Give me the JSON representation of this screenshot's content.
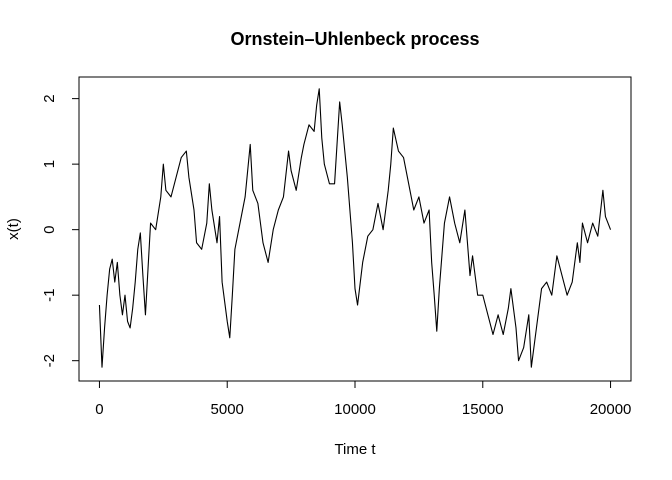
{
  "chart_data": {
    "type": "line",
    "title": "Ornstein–Uhlenbeck process",
    "x_label": "Time t",
    "y_label": "x(t)",
    "series": [
      {
        "color": "#000000",
        "x": [
          0,
          100,
          200,
          300,
          400,
          500,
          600,
          700,
          800,
          900,
          1000,
          1100,
          1200,
          1300,
          1400,
          1500,
          1600,
          1700,
          1800,
          1900,
          2000,
          2200,
          2400,
          2500,
          2600,
          2800,
          3000,
          3200,
          3400,
          3500,
          3700,
          3800,
          4000,
          4200,
          4300,
          4400,
          4600,
          4700,
          4800,
          5000,
          5100,
          5200,
          5300,
          5500,
          5700,
          5800,
          5900,
          6000,
          6200,
          6400,
          6600,
          6800,
          7000,
          7200,
          7400,
          7500,
          7700,
          7900,
          8000,
          8200,
          8400,
          8500,
          8600,
          8700,
          8800,
          9000,
          9200,
          9400,
          9500,
          9700,
          9900,
          10000,
          10100,
          10300,
          10500,
          10700,
          10900,
          11100,
          11300,
          11400,
          11500,
          11700,
          11900,
          12100,
          12300,
          12500,
          12700,
          12900,
          13000,
          13100,
          13200,
          13300,
          13500,
          13700,
          13900,
          14100,
          14300,
          14500,
          14600,
          14800,
          15000,
          15200,
          15400,
          15600,
          15800,
          16000,
          16100,
          16300,
          16400,
          16600,
          16800,
          16900,
          17100,
          17300,
          17500,
          17700,
          17900,
          18100,
          18300,
          18500,
          18700,
          18800,
          18900,
          19100,
          19300,
          19500,
          19700,
          19800,
          20000
        ],
        "values": [
          -1.15,
          -2.1,
          -1.5,
          -1.0,
          -0.6,
          -0.45,
          -0.8,
          -0.5,
          -1.0,
          -1.3,
          -1.0,
          -1.4,
          -1.5,
          -1.2,
          -0.8,
          -0.3,
          -0.05,
          -0.7,
          -1.3,
          -0.6,
          0.1,
          0.0,
          0.5,
          1.0,
          0.6,
          0.5,
          0.8,
          1.1,
          1.2,
          0.8,
          0.3,
          -0.2,
          -0.3,
          0.1,
          0.7,
          0.3,
          -0.2,
          0.2,
          -0.8,
          -1.4,
          -1.65,
          -1.0,
          -0.3,
          0.1,
          0.5,
          0.9,
          1.3,
          0.6,
          0.4,
          -0.2,
          -0.5,
          0.0,
          0.3,
          0.5,
          1.2,
          0.9,
          0.6,
          1.1,
          1.3,
          1.6,
          1.5,
          1.9,
          2.15,
          1.4,
          1.0,
          0.7,
          0.7,
          1.95,
          1.6,
          0.8,
          -0.2,
          -0.9,
          -1.15,
          -0.5,
          -0.1,
          0.0,
          0.4,
          0.0,
          0.6,
          1.0,
          1.55,
          1.2,
          1.1,
          0.7,
          0.3,
          0.5,
          0.1,
          0.3,
          -0.5,
          -1.0,
          -1.55,
          -0.9,
          0.1,
          0.5,
          0.1,
          -0.2,
          0.3,
          -0.7,
          -0.4,
          -1.0,
          -1.0,
          -1.3,
          -1.6,
          -1.3,
          -1.6,
          -1.2,
          -0.9,
          -1.5,
          -2.0,
          -1.8,
          -1.3,
          -2.1,
          -1.5,
          -0.9,
          -0.8,
          -1.0,
          -0.4,
          -0.7,
          -1.0,
          -0.8,
          -0.2,
          -0.5,
          0.1,
          -0.2,
          0.1,
          -0.1,
          0.6,
          0.2,
          0.0
        ]
      }
    ],
    "xlim": [
      -800,
      20800
    ],
    "ylim": [
      -2.31,
      2.33
    ],
    "xticks": [
      0,
      5000,
      10000,
      15000,
      20000
    ],
    "yticks": [
      -2,
      -1,
      0,
      1,
      2
    ]
  }
}
